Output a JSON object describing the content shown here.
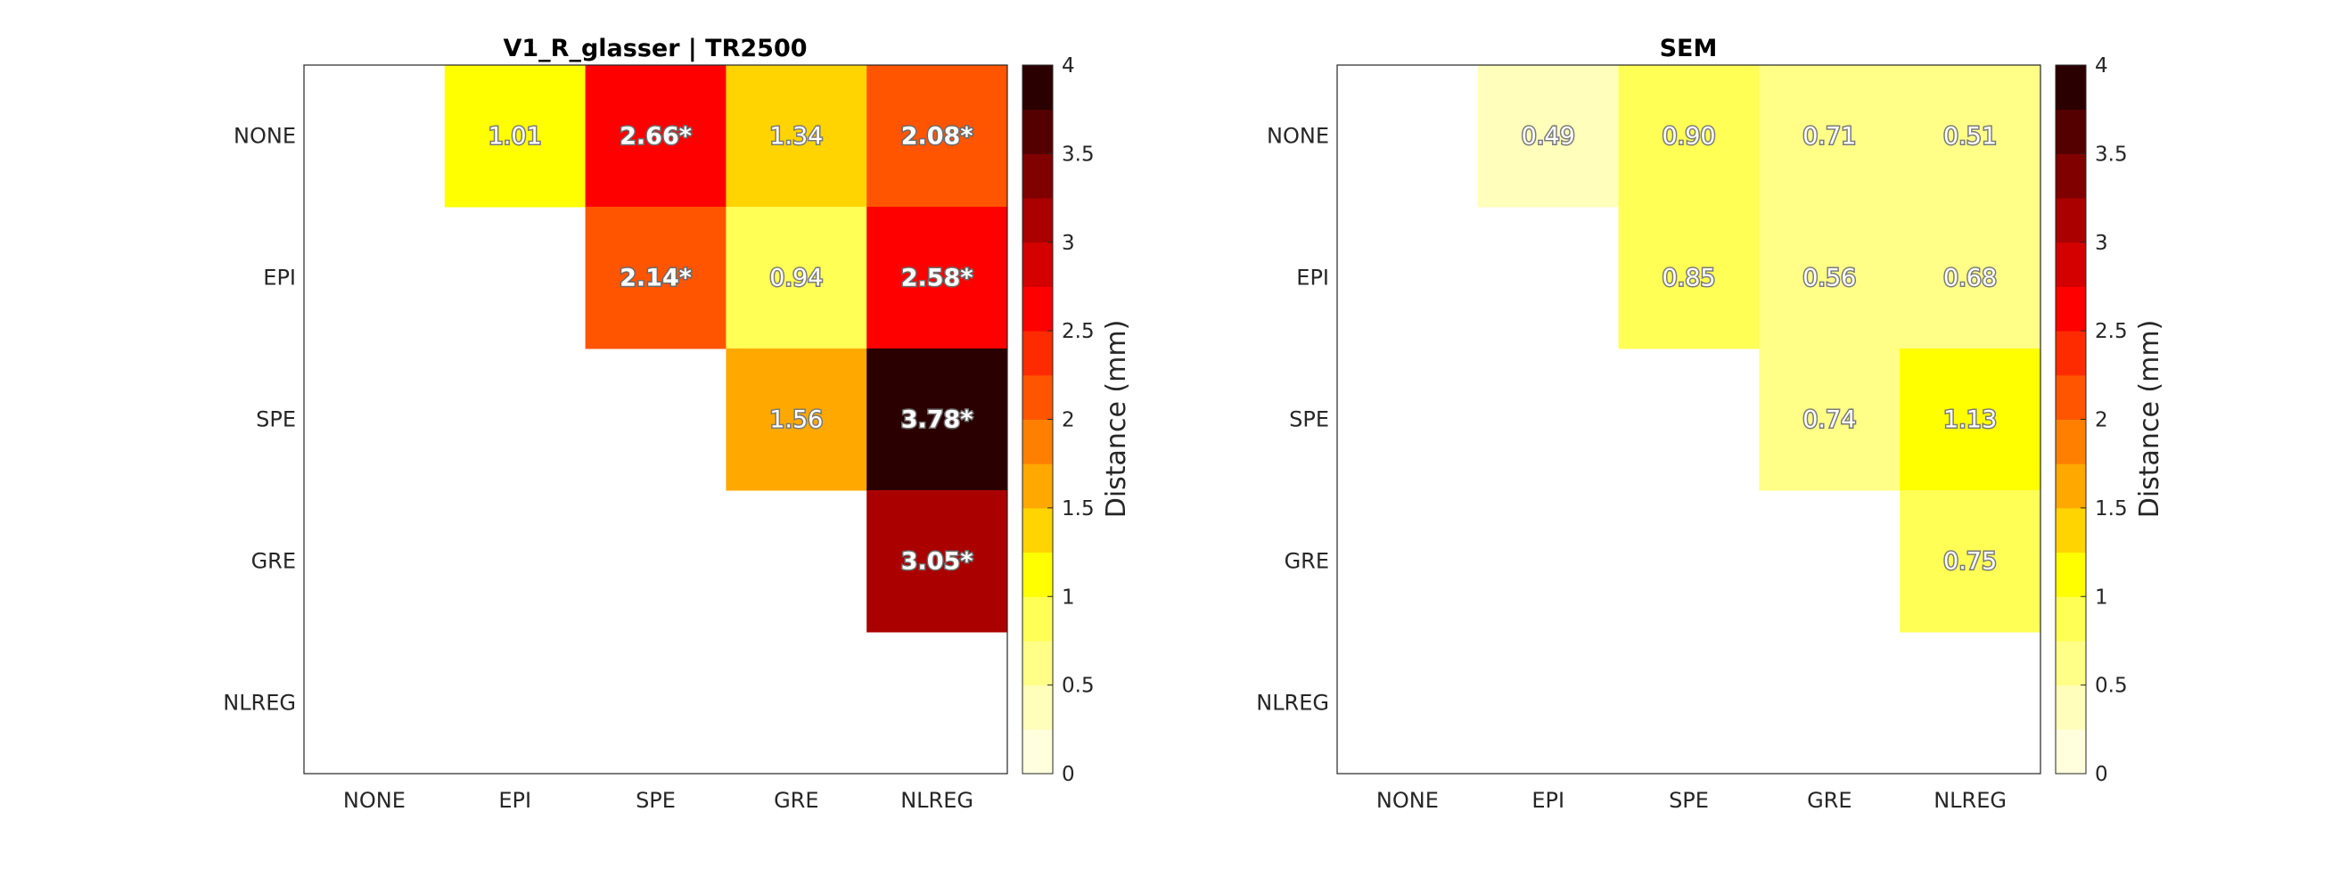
{
  "colormap": [
    "#ffffdd",
    "#ffffbb",
    "#ffff88",
    "#ffff55",
    "#ffff00",
    "#ffd400",
    "#ffa800",
    "#ff8000",
    "#ff5500",
    "#ff2b00",
    "#ff0000",
    "#d40000",
    "#aa0000",
    "#800000",
    "#550000",
    "#2b0000"
  ],
  "chart_data": [
    {
      "type": "heatmap",
      "title": "V1_R_glasser | TR2500",
      "x_categories": [
        "NONE",
        "EPI",
        "SPE",
        "GRE",
        "NLREG"
      ],
      "y_categories": [
        "NONE",
        "EPI",
        "SPE",
        "GRE",
        "NLREG"
      ],
      "values": [
        [
          null,
          1.01,
          2.66,
          1.34,
          2.08
        ],
        [
          null,
          null,
          2.14,
          0.94,
          2.58
        ],
        [
          null,
          null,
          null,
          1.56,
          3.78
        ],
        [
          null,
          null,
          null,
          null,
          3.05
        ],
        [
          null,
          null,
          null,
          null,
          null
        ]
      ],
      "labels": [
        [
          "",
          "1.01",
          "2.66*",
          "1.34",
          "2.08*"
        ],
        [
          "",
          "",
          "2.14*",
          "0.94",
          "2.58*"
        ],
        [
          "",
          "",
          "",
          "1.56",
          "3.78*"
        ],
        [
          "",
          "",
          "",
          "",
          "3.05*"
        ],
        [
          "",
          "",
          "",
          "",
          ""
        ]
      ],
      "colorbar": {
        "label": "Distance (mm)",
        "range": [
          0,
          4
        ],
        "levels": 16,
        "ticks": [
          "0",
          "0.5",
          "1",
          "1.5",
          "2",
          "2.5",
          "3",
          "3.5",
          "4"
        ]
      }
    },
    {
      "type": "heatmap",
      "title": "SEM",
      "x_categories": [
        "NONE",
        "EPI",
        "SPE",
        "GRE",
        "NLREG"
      ],
      "y_categories": [
        "NONE",
        "EPI",
        "SPE",
        "GRE",
        "NLREG"
      ],
      "values": [
        [
          null,
          0.49,
          0.9,
          0.71,
          0.51
        ],
        [
          null,
          null,
          0.85,
          0.56,
          0.68
        ],
        [
          null,
          null,
          null,
          0.74,
          1.13
        ],
        [
          null,
          null,
          null,
          null,
          0.75
        ],
        [
          null,
          null,
          null,
          null,
          null
        ]
      ],
      "labels": [
        [
          "",
          "0.49",
          "0.90",
          "0.71",
          "0.51"
        ],
        [
          "",
          "",
          "0.85",
          "0.56",
          "0.68"
        ],
        [
          "",
          "",
          "",
          "0.74",
          "1.13"
        ],
        [
          "",
          "",
          "",
          "",
          "0.75"
        ],
        [
          "",
          "",
          "",
          "",
          ""
        ]
      ],
      "colorbar": {
        "label": "Distance (mm)",
        "range": [
          0,
          4
        ],
        "levels": 16,
        "ticks": [
          "0",
          "0.5",
          "1",
          "1.5",
          "2",
          "2.5",
          "3",
          "3.5",
          "4"
        ]
      }
    }
  ]
}
